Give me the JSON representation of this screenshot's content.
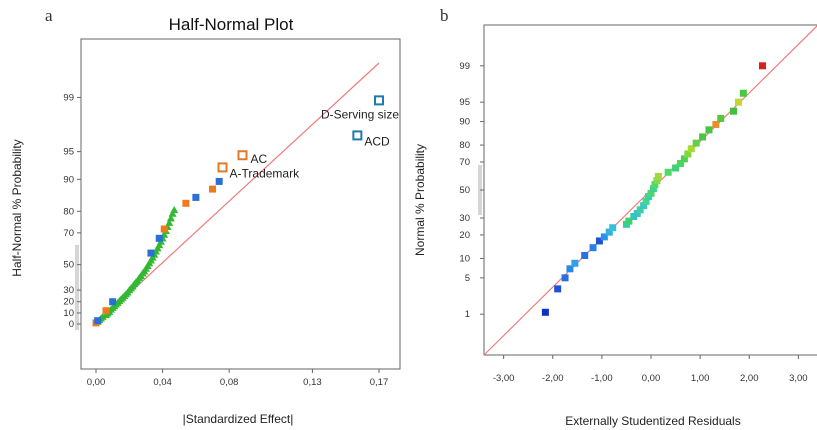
{
  "panel_a": {
    "letter": "a"
  },
  "panel_b": {
    "letter": "b"
  },
  "chart_data": [
    {
      "type": "scatter",
      "title": "Half-Normal Plot",
      "xlabel": "|Standardized Effect|",
      "ylabel": "Half-Normal % Probability",
      "xlim": [
        -0.01,
        0.18
      ],
      "ylim": [
        0,
        99.7
      ],
      "y_scale": "half-normal probability",
      "grid": false,
      "x_ticks": [
        {
          "value": 0.0,
          "label": "0,00"
        },
        {
          "value": 0.04,
          "label": "0,04"
        },
        {
          "value": 0.08,
          "label": "0,08"
        },
        {
          "value": 0.13,
          "label": "0,13"
        },
        {
          "value": 0.17,
          "label": "0,17"
        }
      ],
      "y_ticks": [
        {
          "value": 0,
          "label": "0"
        },
        {
          "value": 10,
          "label": "10"
        },
        {
          "value": 20,
          "label": "20"
        },
        {
          "value": 30,
          "label": "30"
        },
        {
          "value": 50,
          "label": "50"
        },
        {
          "value": 70,
          "label": "70"
        },
        {
          "value": 80,
          "label": "80"
        },
        {
          "value": 90,
          "label": "90"
        },
        {
          "value": 95,
          "label": "95"
        },
        {
          "value": 99,
          "label": "99"
        }
      ],
      "reference_line": {
        "color": "#f07a7a",
        "from": [
          0.0,
          0.0
        ],
        "to": [
          0.17,
          99.7
        ]
      },
      "series": [
        {
          "marker": "triangle",
          "color": "#33b833",
          "points": [
            [
              0.001,
              2
            ],
            [
              0.002,
              3.5
            ],
            [
              0.003,
              5
            ],
            [
              0.004,
              6.5
            ],
            [
              0.006,
              8
            ],
            [
              0.007,
              9.5
            ],
            [
              0.008,
              11
            ],
            [
              0.009,
              13
            ],
            [
              0.01,
              14.5
            ],
            [
              0.011,
              16
            ],
            [
              0.012,
              17.5
            ],
            [
              0.013,
              19
            ],
            [
              0.014,
              20.5
            ],
            [
              0.015,
              22
            ],
            [
              0.016,
              23.5
            ],
            [
              0.017,
              25
            ],
            [
              0.018,
              26.5
            ],
            [
              0.019,
              28
            ],
            [
              0.02,
              30
            ],
            [
              0.021,
              31.5
            ],
            [
              0.022,
              33
            ],
            [
              0.023,
              35
            ],
            [
              0.024,
              36.5
            ],
            [
              0.025,
              38
            ],
            [
              0.026,
              40
            ],
            [
              0.027,
              41.5
            ],
            [
              0.028,
              43.5
            ],
            [
              0.029,
              45
            ],
            [
              0.03,
              47
            ],
            [
              0.031,
              49
            ],
            [
              0.032,
              51
            ],
            [
              0.033,
              53
            ],
            [
              0.034,
              55
            ],
            [
              0.035,
              57
            ],
            [
              0.036,
              59
            ],
            [
              0.037,
              61
            ],
            [
              0.038,
              63
            ],
            [
              0.039,
              65
            ],
            [
              0.04,
              67
            ],
            [
              0.041,
              69
            ],
            [
              0.042,
              71
            ],
            [
              0.043,
              73
            ],
            [
              0.044,
              75
            ],
            [
              0.045,
              77
            ],
            [
              0.046,
              79
            ],
            [
              0.047,
              80.5
            ]
          ]
        },
        {
          "marker": "square",
          "color": "#ef7a1e",
          "points": [
            [
              0.0,
              1
            ],
            [
              0.006,
              12
            ],
            [
              0.041,
              72
            ],
            [
              0.054,
              83
            ],
            [
              0.07,
              87.5
            ]
          ]
        },
        {
          "marker": "square",
          "color": "#2b6fd6",
          "points": [
            [
              0.001,
              3
            ],
            [
              0.01,
              20
            ],
            [
              0.033,
              58
            ],
            [
              0.038,
              67
            ],
            [
              0.06,
              85
            ],
            [
              0.074,
              89.5
            ]
          ]
        },
        {
          "marker": "open-square",
          "color": "#e07a28",
          "points": [
            {
              "x": 0.076,
              "y": 92.5,
              "label": "A-Trademark"
            },
            {
              "x": 0.088,
              "y": 94.5,
              "label": "AC"
            }
          ]
        },
        {
          "marker": "open-square",
          "color": "#1f7ab0",
          "points": [
            {
              "x": 0.157,
              "y": 96.8,
              "label": "ACD"
            },
            {
              "x": 0.17,
              "y": 98.9,
              "label": "D-Serving size"
            }
          ]
        }
      ]
    },
    {
      "type": "scatter",
      "title": "",
      "xlabel": "Externally Studentized Residuals",
      "ylabel": "Normal % Probability",
      "xlim": [
        -3.4,
        3.4
      ],
      "ylim": [
        0.1,
        99.9
      ],
      "y_scale": "normal probability",
      "grid": false,
      "x_ticks": [
        {
          "value": -3,
          "label": "-3,00"
        },
        {
          "value": -2,
          "label": "-2,00"
        },
        {
          "value": -1,
          "label": "-1,00"
        },
        {
          "value": 0,
          "label": "0,00"
        },
        {
          "value": 1,
          "label": "1,00"
        },
        {
          "value": 2,
          "label": "2,00"
        },
        {
          "value": 3,
          "label": "3,00"
        }
      ],
      "y_ticks": [
        {
          "value": 1,
          "label": "1"
        },
        {
          "value": 5,
          "label": "5"
        },
        {
          "value": 10,
          "label": "10"
        },
        {
          "value": 20,
          "label": "20"
        },
        {
          "value": 30,
          "label": "30"
        },
        {
          "value": 50,
          "label": "50"
        },
        {
          "value": 70,
          "label": "70"
        },
        {
          "value": 80,
          "label": "80"
        },
        {
          "value": 90,
          "label": "90"
        },
        {
          "value": 95,
          "label": "95"
        },
        {
          "value": 99,
          "label": "99"
        }
      ],
      "reference_line": {
        "color": "#f07a7a",
        "from": [
          -3.4,
          0.1
        ],
        "to": [
          3.4,
          99.9
        ]
      },
      "points": [
        {
          "x": -2.15,
          "y": 1.1,
          "color": "#1030c0"
        },
        {
          "x": -1.9,
          "y": 3.2,
          "color": "#1e50d8"
        },
        {
          "x": -1.75,
          "y": 5.0,
          "color": "#2870e0"
        },
        {
          "x": -1.65,
          "y": 7.0,
          "color": "#2a8ae8"
        },
        {
          "x": -1.55,
          "y": 8.5,
          "color": "#30a0e8"
        },
        {
          "x": -1.35,
          "y": 11.0,
          "color": "#2a70e0"
        },
        {
          "x": -1.18,
          "y": 14.0,
          "color": "#2a80e8"
        },
        {
          "x": -1.05,
          "y": 17.0,
          "color": "#1e50d0"
        },
        {
          "x": -0.95,
          "y": 19.0,
          "color": "#2a90e8"
        },
        {
          "x": -0.85,
          "y": 21.5,
          "color": "#30b0e0"
        },
        {
          "x": -0.78,
          "y": 24.0,
          "color": "#38c0d8"
        },
        {
          "x": -0.5,
          "y": 26.0,
          "color": "#30d0a0"
        },
        {
          "x": -0.45,
          "y": 28.0,
          "color": "#40d070"
        },
        {
          "x": -0.35,
          "y": 31.0,
          "color": "#30c8b0"
        },
        {
          "x": -0.28,
          "y": 33.0,
          "color": "#38c0d0"
        },
        {
          "x": -0.22,
          "y": 35.5,
          "color": "#40d0a0"
        },
        {
          "x": -0.15,
          "y": 38.5,
          "color": "#38c8c0"
        },
        {
          "x": -0.1,
          "y": 41.5,
          "color": "#40d890"
        },
        {
          "x": -0.05,
          "y": 45.0,
          "color": "#38d0a8"
        },
        {
          "x": 0.0,
          "y": 47.5,
          "color": "#48d870"
        },
        {
          "x": 0.05,
          "y": 51.0,
          "color": "#40d090"
        },
        {
          "x": 0.08,
          "y": 54.0,
          "color": "#50d860"
        },
        {
          "x": 0.12,
          "y": 57.0,
          "color": "#80d850"
        },
        {
          "x": 0.15,
          "y": 60.0,
          "color": "#a0d840"
        },
        {
          "x": 0.35,
          "y": 63.0,
          "color": "#50d868"
        },
        {
          "x": 0.5,
          "y": 66.0,
          "color": "#40d078"
        },
        {
          "x": 0.6,
          "y": 69.0,
          "color": "#48d860"
        },
        {
          "x": 0.68,
          "y": 72.0,
          "color": "#50d050"
        },
        {
          "x": 0.75,
          "y": 75.0,
          "color": "#80d838"
        },
        {
          "x": 0.82,
          "y": 78.0,
          "color": "#a8d830"
        },
        {
          "x": 0.92,
          "y": 81.0,
          "color": "#60d048"
        },
        {
          "x": 1.05,
          "y": 84.0,
          "color": "#48c840"
        },
        {
          "x": 1.18,
          "y": 87.0,
          "color": "#40c840"
        },
        {
          "x": 1.32,
          "y": 89.0,
          "color": "#e89030"
        },
        {
          "x": 1.42,
          "y": 91.0,
          "color": "#58c838"
        },
        {
          "x": 1.68,
          "y": 93.0,
          "color": "#40c040"
        },
        {
          "x": 1.78,
          "y": 95.0,
          "color": "#c0d830"
        },
        {
          "x": 1.88,
          "y": 96.5,
          "color": "#48c840"
        },
        {
          "x": 2.27,
          "y": 99.0,
          "color": "#d82020"
        }
      ]
    }
  ]
}
